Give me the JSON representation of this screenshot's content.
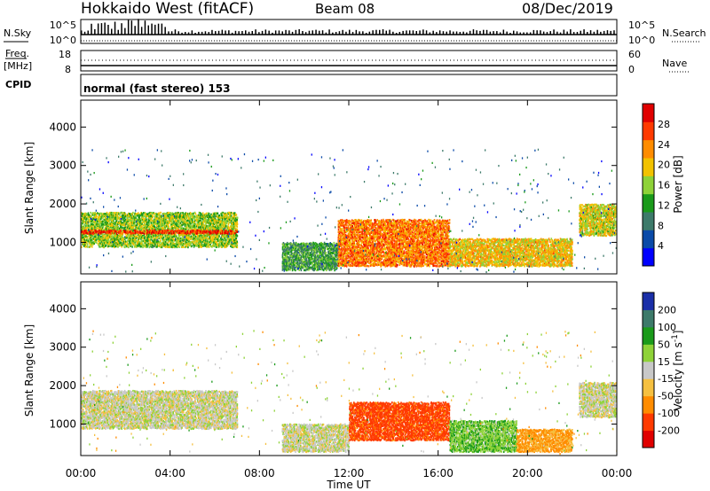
{
  "header": {
    "radar": "Hokkaido West (fitACF)",
    "beam": "Beam 08",
    "date": "08/Dec/2019"
  },
  "panels": {
    "noise": {
      "left_label": "N.Sky",
      "right_label": "N.Search",
      "left_ticks": [
        "10^5",
        "10^0"
      ],
      "right_ticks": [
        "10^5",
        "10^0"
      ]
    },
    "freq": {
      "left_label_1": "Freq.",
      "left_label_2": "[MHz]",
      "left_ticks": [
        "18",
        "8"
      ],
      "right_label": "Nave",
      "right_ticks": [
        "60",
        "0"
      ]
    },
    "cpid": {
      "label": "CPID",
      "mode": "normal (fast stereo) 153"
    }
  },
  "colors": {
    "power": [
      "#0000ff",
      "#0a4aa8",
      "#3d7a6a",
      "#1a9a1a",
      "#8ed238",
      "#f2c200",
      "#ff8c00",
      "#ff3a00",
      "#e00000"
    ],
    "velocity": [
      "#e00000",
      "#ff3a00",
      "#ff8c00",
      "#f5c040",
      "#c8c8c8",
      "#8ed238",
      "#1a9a1a",
      "#3d7a6a",
      "#1a2fa8"
    ]
  },
  "chart_data": [
    {
      "type": "heatmap",
      "title": "",
      "xlabel": "Time UT",
      "ylabel": "Slant Range [km]",
      "x_ticks": [
        "00:00",
        "04:00",
        "08:00",
        "12:00",
        "16:00",
        "20:00",
        "00:00"
      ],
      "y_ticks": [
        "1000",
        "2000",
        "3000",
        "4000"
      ],
      "xlim_hours": [
        0,
        24
      ],
      "ylim_km": [
        180,
        4700
      ],
      "colorbar": {
        "label": "Power [dB]",
        "ticks": [
          "4",
          "8",
          "12",
          "16",
          "20",
          "24",
          "28"
        ],
        "range": [
          0,
          32
        ]
      },
      "echo_regions": [
        {
          "start_hour": 0.0,
          "end_hour": 7.0,
          "range_km": [
            900,
            1800
          ],
          "value": 16
        },
        {
          "start_hour": 0.0,
          "end_hour": 7.0,
          "range_km": [
            1250,
            1350
          ],
          "value": 28
        },
        {
          "start_hour": 9.0,
          "end_hour": 11.5,
          "range_km": [
            300,
            1000
          ],
          "value": 12
        },
        {
          "start_hour": 11.5,
          "end_hour": 16.5,
          "range_km": [
            400,
            1600
          ],
          "value": 24
        },
        {
          "start_hour": 16.5,
          "end_hour": 22.0,
          "range_km": [
            400,
            1100
          ],
          "value": 20
        },
        {
          "start_hour": 22.3,
          "end_hour": 24.0,
          "range_km": [
            1200,
            2000
          ],
          "value": 18
        }
      ]
    },
    {
      "type": "heatmap",
      "title": "",
      "xlabel": "Time UT",
      "ylabel": "Slant Range [km]",
      "x_ticks": [
        "00:00",
        "04:00",
        "08:00",
        "12:00",
        "16:00",
        "20:00",
        "00:00"
      ],
      "y_ticks": [
        "1000",
        "2000",
        "3000",
        "4000"
      ],
      "xlim_hours": [
        0,
        24
      ],
      "ylim_km": [
        180,
        4700
      ],
      "colorbar": {
        "label_text": "Velocity [m s",
        "label_exp": "-1",
        "label_end": "]",
        "ticks": [
          "-200",
          "-100",
          "-50",
          "-15",
          "15",
          "50",
          "100",
          "200"
        ]
      },
      "echo_regions": [
        {
          "start_hour": 0.0,
          "end_hour": 7.0,
          "range_km": [
            900,
            1900
          ],
          "value": 0
        },
        {
          "start_hour": 9.0,
          "end_hour": 12.0,
          "range_km": [
            300,
            1000
          ],
          "value": 0
        },
        {
          "start_hour": 12.0,
          "end_hour": 16.5,
          "range_km": [
            600,
            1600
          ],
          "value": -120
        },
        {
          "start_hour": 16.5,
          "end_hour": 19.5,
          "range_km": [
            300,
            1100
          ],
          "value": 40
        },
        {
          "start_hour": 19.5,
          "end_hour": 22.0,
          "range_km": [
            300,
            900
          ],
          "value": -60
        },
        {
          "start_hour": 22.3,
          "end_hour": 24.0,
          "range_km": [
            1200,
            2100
          ],
          "value": 0
        }
      ]
    }
  ]
}
